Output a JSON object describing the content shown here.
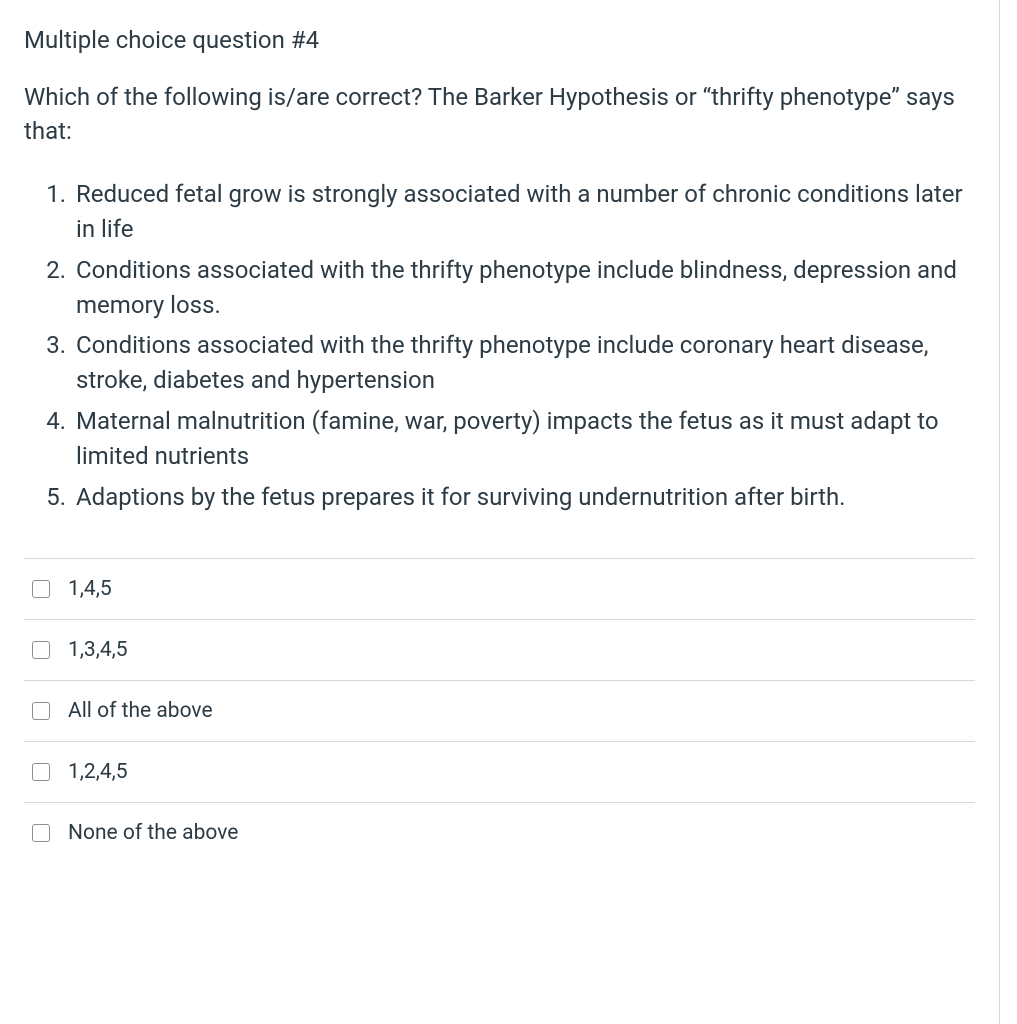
{
  "colors": {
    "text": "#2d3b45",
    "border": "#d8d8d8",
    "checkbox_border": "#8a8f95",
    "background": "#ffffff"
  },
  "typography": {
    "title_fontsize": 24,
    "stem_fontsize": 24,
    "statement_fontsize": 24,
    "answer_fontsize": 21,
    "font_family": "-apple-system, Segoe UI, Helvetica Neue, Arial, sans-serif",
    "weight": 400
  },
  "question": {
    "title": "Multiple choice question #4",
    "stem": "Which of the following is/are correct? The Barker Hypothesis or “thrifty phenotype” says that:",
    "statements": [
      "Reduced fetal grow is strongly associated with a number of chronic conditions later in life",
      "Conditions associated with the thrifty phenotype include blindness, depression and memory loss.",
      "Conditions associated with the thrifty phenotype include coronary heart disease, stroke, diabetes and hypertension",
      "Maternal malnutrition (famine, war, poverty) impacts the fetus as it must adapt to limited nutrients",
      "Adaptions by the fetus prepares it for surviving undernutrition after birth."
    ]
  },
  "answers": [
    {
      "label": "1,4,5",
      "checked": false
    },
    {
      "label": "1,3,4,5",
      "checked": false
    },
    {
      "label": "All of the above",
      "checked": false
    },
    {
      "label": "1,2,4,5",
      "checked": false
    },
    {
      "label": "None of the above",
      "checked": false
    }
  ]
}
